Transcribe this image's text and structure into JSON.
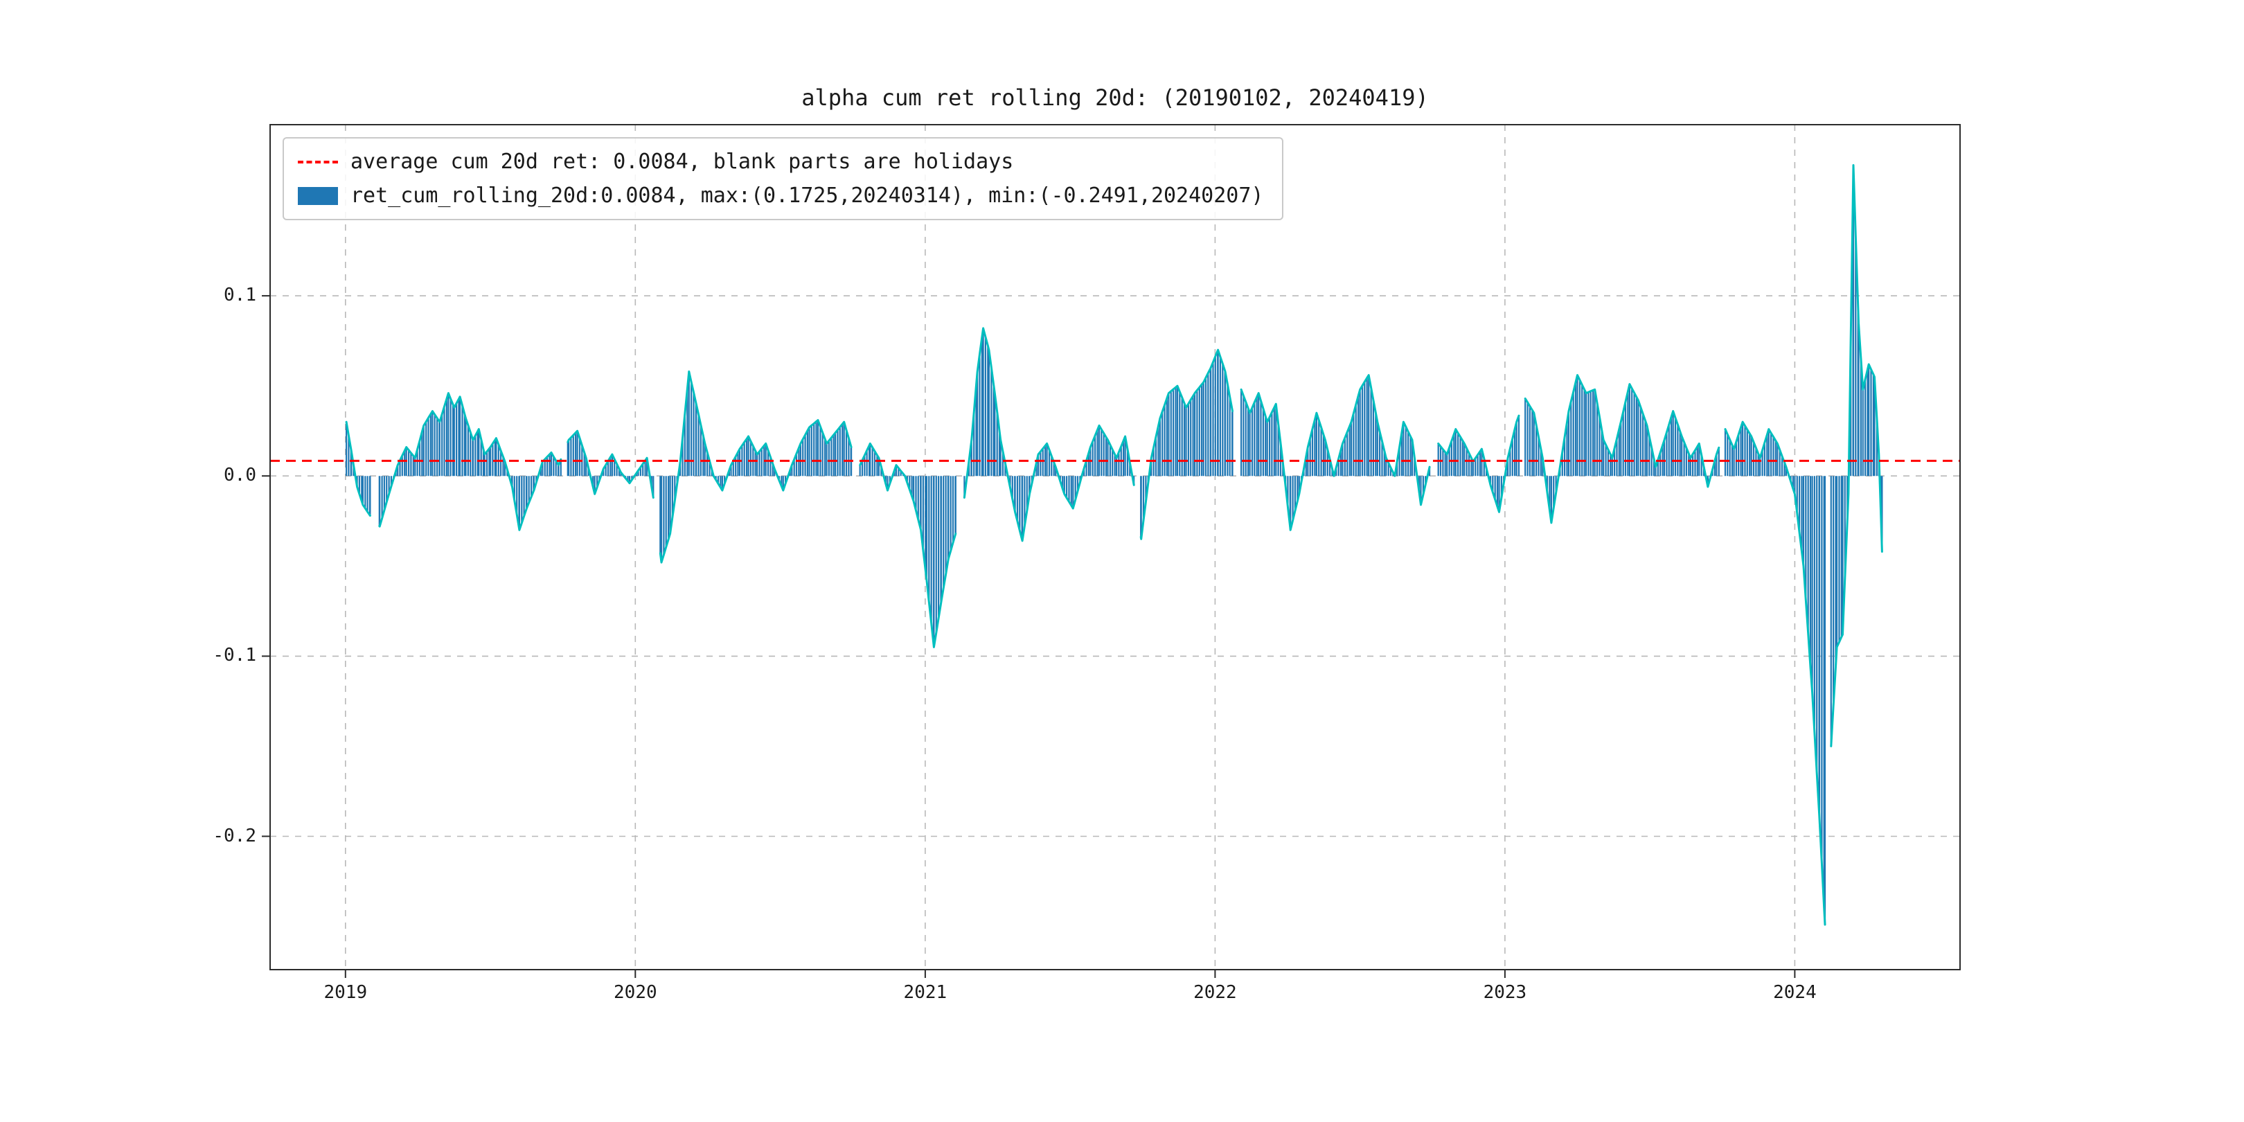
{
  "title": "alpha cum ret rolling 20d: (20190102, 20240419)",
  "legend": {
    "avg_label": "average cum 20d ret: 0.0084, blank parts are holidays",
    "series_label": "ret_cum_rolling_20d:0.0084, max:(0.1725,20240314), min:(-0.2491,20240207)"
  },
  "colors": {
    "line": "#00bfbf",
    "bars": "#1f77b4",
    "avg_line": "#ff0000",
    "grid": "#b8b8b8",
    "spine": "#2b2b2b"
  },
  "chart_data": {
    "type": "bar+line",
    "title": "alpha cum ret rolling 20d: (20190102, 20240419)",
    "xlabel": "",
    "ylabel": "",
    "date_range": [
      "20190102",
      "20240419"
    ],
    "average": 0.0084,
    "max": {
      "value": 0.1725,
      "date": "20240314"
    },
    "min": {
      "value": -0.2491,
      "date": "20240207"
    },
    "x_ticks": [
      2019,
      2020,
      2021,
      2022,
      2023,
      2024
    ],
    "x_tick_labels": [
      "2019",
      "2020",
      "2021",
      "2022",
      "2023",
      "2024"
    ],
    "y_ticks": [
      0.1,
      0.0,
      -0.1,
      -0.2
    ],
    "y_tick_labels": [
      "0.1",
      "0.0",
      "-0.1",
      "-0.2"
    ],
    "x_range": [
      2018.74,
      2024.57
    ],
    "y_range": [
      -0.274,
      0.195
    ],
    "grid": "dashed",
    "legend_position": "upper-left",
    "holiday_gaps": [
      [
        2019.088,
        2019.112
      ],
      [
        2019.745,
        2019.765
      ],
      [
        2020.065,
        2020.085
      ],
      [
        2020.75,
        2020.77
      ],
      [
        2021.11,
        2021.13
      ],
      [
        2021.725,
        2021.742
      ],
      [
        2022.063,
        2022.085
      ],
      [
        2022.745,
        2022.765
      ],
      [
        2023.055,
        2023.068
      ],
      [
        2023.742,
        2023.758
      ],
      [
        2024.107,
        2024.122
      ]
    ],
    "anchors": [
      [
        2019.003,
        0.03
      ],
      [
        2019.02,
        0.014
      ],
      [
        2019.04,
        -0.006
      ],
      [
        2019.06,
        -0.016
      ],
      [
        2019.085,
        -0.022
      ],
      [
        2019.118,
        -0.028
      ],
      [
        2019.15,
        -0.01
      ],
      [
        2019.18,
        0.006
      ],
      [
        2019.21,
        0.016
      ],
      [
        2019.24,
        0.01
      ],
      [
        2019.27,
        0.028
      ],
      [
        2019.3,
        0.036
      ],
      [
        2019.325,
        0.03
      ],
      [
        2019.355,
        0.046
      ],
      [
        2019.375,
        0.038
      ],
      [
        2019.395,
        0.044
      ],
      [
        2019.415,
        0.032
      ],
      [
        2019.44,
        0.02
      ],
      [
        2019.46,
        0.026
      ],
      [
        2019.48,
        0.012
      ],
      [
        2019.5,
        0.016
      ],
      [
        2019.52,
        0.021
      ],
      [
        2019.55,
        0.008
      ],
      [
        2019.575,
        -0.006
      ],
      [
        2019.6,
        -0.03
      ],
      [
        2019.625,
        -0.018
      ],
      [
        2019.65,
        -0.008
      ],
      [
        2019.68,
        0.008
      ],
      [
        2019.71,
        0.013
      ],
      [
        2019.735,
        0.006
      ],
      [
        2019.77,
        0.02
      ],
      [
        2019.8,
        0.025
      ],
      [
        2019.83,
        0.01
      ],
      [
        2019.86,
        -0.01
      ],
      [
        2019.89,
        0.004
      ],
      [
        2019.92,
        0.012
      ],
      [
        2019.95,
        0.002
      ],
      [
        2019.98,
        -0.004
      ],
      [
        2020.01,
        0.003
      ],
      [
        2020.04,
        0.01
      ],
      [
        2020.062,
        -0.012
      ],
      [
        2020.09,
        -0.048
      ],
      [
        2020.12,
        -0.032
      ],
      [
        2020.155,
        0.008
      ],
      [
        2020.185,
        0.058
      ],
      [
        2020.21,
        0.04
      ],
      [
        2020.24,
        0.018
      ],
      [
        2020.27,
        0.0
      ],
      [
        2020.3,
        -0.008
      ],
      [
        2020.33,
        0.006
      ],
      [
        2020.36,
        0.015
      ],
      [
        2020.39,
        0.022
      ],
      [
        2020.42,
        0.012
      ],
      [
        2020.45,
        0.018
      ],
      [
        2020.48,
        0.004
      ],
      [
        2020.51,
        -0.008
      ],
      [
        2020.54,
        0.006
      ],
      [
        2020.57,
        0.018
      ],
      [
        2020.6,
        0.027
      ],
      [
        2020.63,
        0.031
      ],
      [
        2020.66,
        0.018
      ],
      [
        2020.69,
        0.024
      ],
      [
        2020.72,
        0.03
      ],
      [
        2020.745,
        0.016
      ],
      [
        2020.775,
        0.006
      ],
      [
        2020.81,
        0.018
      ],
      [
        2020.84,
        0.01
      ],
      [
        2020.87,
        -0.008
      ],
      [
        2020.9,
        0.006
      ],
      [
        2020.93,
        0.0
      ],
      [
        2020.96,
        -0.014
      ],
      [
        2020.985,
        -0.03
      ],
      [
        2021.005,
        -0.058
      ],
      [
        2021.03,
        -0.095
      ],
      [
        2021.055,
        -0.07
      ],
      [
        2021.08,
        -0.046
      ],
      [
        2021.105,
        -0.032
      ],
      [
        2021.135,
        -0.012
      ],
      [
        2021.16,
        0.02
      ],
      [
        2021.18,
        0.058
      ],
      [
        2021.2,
        0.082
      ],
      [
        2021.22,
        0.07
      ],
      [
        2021.24,
        0.046
      ],
      [
        2021.26,
        0.02
      ],
      [
        2021.285,
        0.0
      ],
      [
        2021.31,
        -0.02
      ],
      [
        2021.335,
        -0.036
      ],
      [
        2021.36,
        -0.01
      ],
      [
        2021.39,
        0.012
      ],
      [
        2021.42,
        0.018
      ],
      [
        2021.45,
        0.005
      ],
      [
        2021.48,
        -0.01
      ],
      [
        2021.51,
        -0.018
      ],
      [
        2021.54,
        0.0
      ],
      [
        2021.57,
        0.016
      ],
      [
        2021.6,
        0.028
      ],
      [
        2021.63,
        0.02
      ],
      [
        2021.66,
        0.01
      ],
      [
        2021.69,
        0.022
      ],
      [
        2021.72,
        -0.005
      ],
      [
        2021.745,
        -0.035
      ],
      [
        2021.78,
        0.01
      ],
      [
        2021.81,
        0.032
      ],
      [
        2021.84,
        0.046
      ],
      [
        2021.87,
        0.05
      ],
      [
        2021.9,
        0.038
      ],
      [
        2021.93,
        0.046
      ],
      [
        2021.96,
        0.052
      ],
      [
        2021.985,
        0.06
      ],
      [
        2022.01,
        0.07
      ],
      [
        2022.035,
        0.058
      ],
      [
        2022.06,
        0.036
      ],
      [
        2022.09,
        0.048
      ],
      [
        2022.12,
        0.035
      ],
      [
        2022.15,
        0.046
      ],
      [
        2022.18,
        0.03
      ],
      [
        2022.21,
        0.04
      ],
      [
        2022.235,
        0.006
      ],
      [
        2022.26,
        -0.03
      ],
      [
        2022.29,
        -0.01
      ],
      [
        2022.32,
        0.016
      ],
      [
        2022.35,
        0.035
      ],
      [
        2022.38,
        0.02
      ],
      [
        2022.41,
        0.0
      ],
      [
        2022.44,
        0.018
      ],
      [
        2022.47,
        0.03
      ],
      [
        2022.5,
        0.048
      ],
      [
        2022.53,
        0.056
      ],
      [
        2022.56,
        0.03
      ],
      [
        2022.59,
        0.01
      ],
      [
        2022.62,
        0.0
      ],
      [
        2022.65,
        0.03
      ],
      [
        2022.68,
        0.02
      ],
      [
        2022.71,
        -0.016
      ],
      [
        2022.74,
        0.005
      ],
      [
        2022.77,
        0.018
      ],
      [
        2022.8,
        0.012
      ],
      [
        2022.83,
        0.026
      ],
      [
        2022.86,
        0.018
      ],
      [
        2022.89,
        0.008
      ],
      [
        2022.92,
        0.015
      ],
      [
        2022.95,
        -0.005
      ],
      [
        2022.98,
        -0.02
      ],
      [
        2023.01,
        0.01
      ],
      [
        2023.04,
        0.03
      ],
      [
        2023.07,
        0.043
      ],
      [
        2023.1,
        0.035
      ],
      [
        2023.13,
        0.01
      ],
      [
        2023.16,
        -0.026
      ],
      [
        2023.19,
        0.005
      ],
      [
        2023.22,
        0.036
      ],
      [
        2023.25,
        0.056
      ],
      [
        2023.28,
        0.046
      ],
      [
        2023.31,
        0.048
      ],
      [
        2023.34,
        0.02
      ],
      [
        2023.37,
        0.01
      ],
      [
        2023.4,
        0.03
      ],
      [
        2023.43,
        0.051
      ],
      [
        2023.46,
        0.042
      ],
      [
        2023.49,
        0.028
      ],
      [
        2023.52,
        0.005
      ],
      [
        2023.55,
        0.02
      ],
      [
        2023.58,
        0.036
      ],
      [
        2023.61,
        0.022
      ],
      [
        2023.64,
        0.01
      ],
      [
        2023.67,
        0.018
      ],
      [
        2023.7,
        -0.006
      ],
      [
        2023.73,
        0.012
      ],
      [
        2023.76,
        0.026
      ],
      [
        2023.79,
        0.015
      ],
      [
        2023.82,
        0.03
      ],
      [
        2023.85,
        0.022
      ],
      [
        2023.88,
        0.01
      ],
      [
        2023.91,
        0.026
      ],
      [
        2023.94,
        0.018
      ],
      [
        2023.97,
        0.005
      ],
      [
        2024.0,
        -0.01
      ],
      [
        2024.03,
        -0.05
      ],
      [
        2024.06,
        -0.12
      ],
      [
        2024.085,
        -0.19
      ],
      [
        2024.104,
        -0.249
      ],
      [
        2024.125,
        -0.15
      ],
      [
        2024.145,
        -0.095
      ],
      [
        2024.165,
        -0.088
      ],
      [
        2024.185,
        -0.01
      ],
      [
        2024.202,
        0.1725
      ],
      [
        2024.22,
        0.085
      ],
      [
        2024.235,
        0.048
      ],
      [
        2024.255,
        0.062
      ],
      [
        2024.275,
        0.055
      ],
      [
        2024.29,
        0.012
      ],
      [
        2024.301,
        -0.042
      ]
    ]
  }
}
